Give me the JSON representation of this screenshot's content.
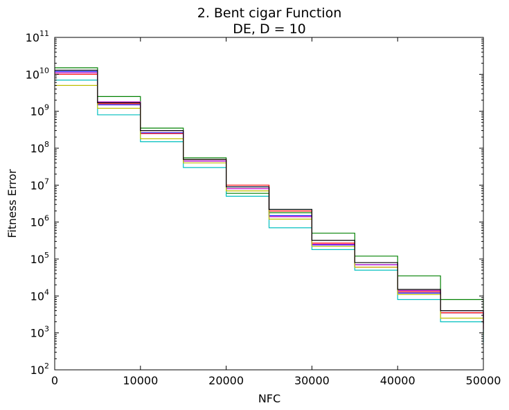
{
  "chart_data": {
    "type": "line",
    "title": "2.   Bent cigar Function",
    "subtitle": "DE, D = 10",
    "xlabel": "NFC",
    "ylabel": "Fitness Error",
    "xlim": [
      0,
      50000
    ],
    "ylim": [
      100,
      100000000000
    ],
    "y_scale": "log",
    "x_ticks": [
      0,
      10000,
      20000,
      30000,
      40000,
      50000
    ],
    "x_tick_labels": [
      "0",
      "10000",
      "20000",
      "30000",
      "40000",
      "50000"
    ],
    "y_ticks": [
      {
        "value": 100,
        "base": "10",
        "exp": "2"
      },
      {
        "value": 1000,
        "base": "10",
        "exp": "3"
      },
      {
        "value": 10000,
        "base": "10",
        "exp": "4"
      },
      {
        "value": 100000,
        "base": "10",
        "exp": "5"
      },
      {
        "value": 1000000,
        "base": "10",
        "exp": "6"
      },
      {
        "value": 10000000,
        "base": "10",
        "exp": "7"
      },
      {
        "value": 100000000,
        "base": "10",
        "exp": "8"
      },
      {
        "value": 1000000000,
        "base": "10",
        "exp": "9"
      },
      {
        "value": 10000000000,
        "base": "10",
        "exp": "10"
      },
      {
        "value": 100000000000,
        "base": "10",
        "exp": "11"
      }
    ],
    "grid": false,
    "legend": "none",
    "series_colors": [
      "#0000ff",
      "#008000",
      "#ff0000",
      "#00bfbf",
      "#bf00bf",
      "#bfbf00",
      "#000000"
    ],
    "series": [
      {
        "color": "#0000ff",
        "x": [
          0,
          5000,
          10000,
          15000,
          20000,
          25000,
          30000,
          35000,
          40000,
          45000,
          50000
        ],
        "y": [
          12000000000,
          1500000000,
          260000000,
          45000000,
          9000000,
          1500000,
          240000,
          70000,
          12000,
          3500,
          1000
        ]
      },
      {
        "color": "#008000",
        "x": [
          0,
          5000,
          10000,
          15000,
          20000,
          25000,
          30000,
          35000,
          40000,
          45000,
          50000
        ],
        "y": [
          15000000000,
          2500000000,
          350000000,
          55000000,
          6000000,
          1800000,
          500000,
          120000,
          35000,
          8000,
          2500
        ]
      },
      {
        "color": "#ff0000",
        "x": [
          0,
          5000,
          10000,
          15000,
          20000,
          25000,
          30000,
          35000,
          40000,
          45000,
          50000
        ],
        "y": [
          10000000000,
          1600000000,
          250000000,
          50000000,
          10000000,
          2000000,
          270000,
          60000,
          13000,
          3500,
          1300
        ]
      },
      {
        "color": "#00bfbf",
        "x": [
          0,
          5000,
          10000,
          15000,
          20000,
          25000,
          30000,
          35000,
          40000,
          45000,
          50000
        ],
        "y": [
          7000000000,
          800000000,
          150000000,
          30000000,
          5000000,
          700000,
          180000,
          50000,
          8000,
          2000,
          550
        ]
      },
      {
        "color": "#bf00bf",
        "x": [
          0,
          5000,
          10000,
          15000,
          20000,
          25000,
          30000,
          35000,
          40000,
          45000,
          50000
        ],
        "y": [
          11000000000,
          1800000000,
          300000000,
          45000000,
          8000000,
          1400000,
          250000,
          70000,
          14000,
          4000,
          1200
        ]
      },
      {
        "color": "#bfbf00",
        "x": [
          0,
          5000,
          10000,
          15000,
          20000,
          25000,
          30000,
          35000,
          40000,
          45000,
          50000
        ],
        "y": [
          5000000000,
          1200000000,
          180000000,
          40000000,
          7000000,
          1200000,
          220000,
          60000,
          11000,
          2500,
          900
        ]
      },
      {
        "color": "#000000",
        "x": [
          0,
          5000,
          10000,
          15000,
          20000,
          25000,
          30000,
          35000,
          40000,
          45000,
          50000
        ],
        "y": [
          13000000000,
          1700000000,
          300000000,
          50000000,
          9000000,
          2200000,
          320000,
          80000,
          15000,
          4000,
          1800
        ]
      }
    ]
  }
}
